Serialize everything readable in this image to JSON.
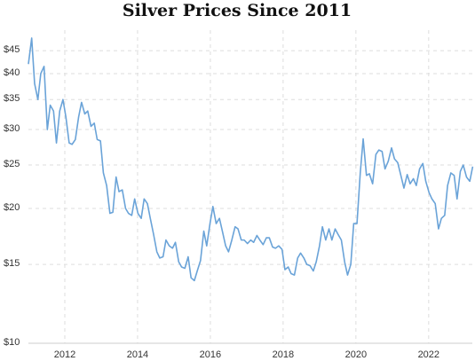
{
  "chart_data": {
    "type": "line",
    "title": "Silver Prices Since 2011",
    "x": [
      2011.0,
      2011.09,
      2011.17,
      2011.26,
      2011.34,
      2011.43,
      2011.52,
      2011.6,
      2011.69,
      2011.77,
      2011.86,
      2011.95,
      2012.03,
      2012.12,
      2012.2,
      2012.29,
      2012.38,
      2012.46,
      2012.55,
      2012.63,
      2012.72,
      2012.81,
      2012.89,
      2012.98,
      2013.06,
      2013.15,
      2013.24,
      2013.32,
      2013.41,
      2013.49,
      2013.58,
      2013.67,
      2013.75,
      2013.84,
      2013.92,
      2014.01,
      2014.1,
      2014.18,
      2014.27,
      2014.35,
      2014.44,
      2014.53,
      2014.61,
      2014.7,
      2014.78,
      2014.87,
      2014.96,
      2015.04,
      2015.13,
      2015.21,
      2015.3,
      2015.39,
      2015.47,
      2015.56,
      2015.64,
      2015.73,
      2015.82,
      2015.9,
      2015.99,
      2016.07,
      2016.16,
      2016.25,
      2016.33,
      2016.42,
      2016.5,
      2016.59,
      2016.68,
      2016.76,
      2016.85,
      2016.93,
      2017.02,
      2017.11,
      2017.19,
      2017.28,
      2017.36,
      2017.45,
      2017.54,
      2017.62,
      2017.71,
      2017.79,
      2017.88,
      2017.97,
      2018.05,
      2018.14,
      2018.22,
      2018.31,
      2018.4,
      2018.48,
      2018.57,
      2018.65,
      2018.74,
      2018.83,
      2018.91,
      2019.0,
      2019.08,
      2019.17,
      2019.26,
      2019.34,
      2019.43,
      2019.51,
      2019.6,
      2019.69,
      2019.77,
      2019.86,
      2019.94,
      2020.03,
      2020.12,
      2020.2,
      2020.29,
      2020.37,
      2020.46,
      2020.55,
      2020.63,
      2020.72,
      2020.8,
      2020.89,
      2020.98,
      2021.06,
      2021.15,
      2021.23,
      2021.32,
      2021.41,
      2021.49,
      2021.58,
      2021.66,
      2021.75,
      2021.84,
      2021.92,
      2022.01,
      2022.09,
      2022.18,
      2022.27,
      2022.35,
      2022.44,
      2022.52,
      2022.61,
      2022.7,
      2022.78,
      2022.87,
      2022.95,
      2023.04,
      2023.13,
      2023.21
    ],
    "series": [
      {
        "color": "#6aa3d8",
        "values": [
          42,
          48,
          38,
          35,
          40,
          41.5,
          30,
          34,
          33,
          28,
          33,
          35,
          32,
          28,
          27.8,
          28.5,
          32,
          34.5,
          32.5,
          33,
          30.5,
          31,
          28.5,
          28.3,
          24,
          22.5,
          19.5,
          19.6,
          23.5,
          21.8,
          22,
          20,
          19.5,
          19.3,
          21,
          19.5,
          19,
          21,
          20.5,
          19,
          17.5,
          16,
          15.5,
          15.6,
          17,
          16.5,
          16.3,
          16.8,
          15.2,
          14.8,
          14.7,
          15.6,
          14,
          13.8,
          14.5,
          15.3,
          17.8,
          16.5,
          18.5,
          20.2,
          18.5,
          19,
          17.8,
          16.5,
          16,
          17,
          18.2,
          18,
          17,
          17,
          16.7,
          17,
          16.8,
          17.4,
          17,
          16.6,
          17.2,
          17.2,
          16.4,
          16.3,
          16.5,
          16.2,
          14.6,
          14.8,
          14.3,
          14.2,
          15.5,
          15.9,
          15.5,
          15,
          14.9,
          14.5,
          15.2,
          16.5,
          18.2,
          17,
          18,
          17,
          18,
          17.5,
          17,
          15.2,
          14.2,
          15,
          18.5,
          18.5,
          24,
          28.6,
          23.7,
          23.9,
          22.7,
          26.4,
          27,
          26.8,
          24.5,
          25.5,
          27.3,
          25.8,
          25.3,
          23.8,
          22.2,
          23.8,
          22.7,
          23.3,
          22.5,
          24.5,
          25.2,
          23,
          21.7,
          21,
          20.5,
          18,
          19,
          19.3,
          22.5,
          24,
          23.7,
          21,
          24.2,
          25,
          23.5,
          23,
          24.8
        ]
      }
    ],
    "xlim": [
      2011,
      2023.2
    ],
    "xticks": [
      2012,
      2014,
      2016,
      2018,
      2020,
      2022
    ],
    "ylim": [
      10,
      50
    ],
    "log_y": true,
    "yticks": [
      {
        "value": 10,
        "label": "$10"
      },
      {
        "value": 15,
        "label": "$15"
      },
      {
        "value": 20,
        "label": "$20"
      },
      {
        "value": 25,
        "label": "$25"
      },
      {
        "value": 30,
        "label": "$30"
      },
      {
        "value": 35,
        "label": "$35"
      },
      {
        "value": 40,
        "label": "$40"
      },
      {
        "value": 45,
        "label": "$45"
      }
    ],
    "grid": true
  }
}
